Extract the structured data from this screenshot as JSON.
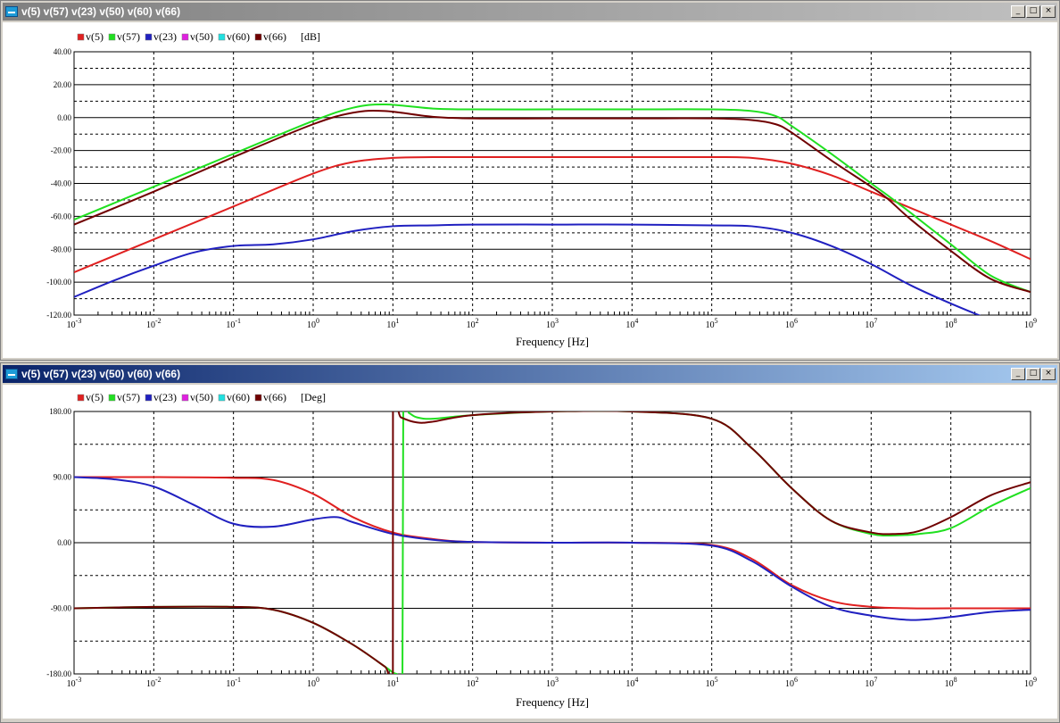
{
  "windows": [
    {
      "title": "v(5) v(57) v(23) v(50) v(60) v(66)",
      "active": false,
      "controls": {
        "minimize": "_",
        "maximize": "□",
        "close": "×"
      }
    },
    {
      "title": "v(5) v(57) v(23) v(50) v(60) v(66)",
      "active": true,
      "controls": {
        "minimize": "_",
        "maximize": "□",
        "close": "×"
      }
    }
  ],
  "chart_data": [
    {
      "type": "line",
      "xscale": "log",
      "xlim": [
        0.001,
        1000000000
      ],
      "ylim": [
        -120,
        40
      ],
      "yticks": [
        40,
        20,
        0,
        -20,
        -40,
        -60,
        -80,
        -100,
        -120
      ],
      "ytick_labels": [
        "40.00",
        "20.00",
        "0.00",
        "-20.00",
        "-40.00",
        "-60.00",
        "-80.00",
        "-100.00",
        "-120.00"
      ],
      "xtick_labels": [
        {
          "base": "10",
          "exp": "-3"
        },
        {
          "base": "10",
          "exp": "-2"
        },
        {
          "base": "10",
          "exp": "-1"
        },
        {
          "base": "10",
          "exp": "0"
        },
        {
          "base": "10",
          "exp": "1"
        },
        {
          "base": "10",
          "exp": "2"
        },
        {
          "base": "10",
          "exp": "3"
        },
        {
          "base": "10",
          "exp": "4"
        },
        {
          "base": "10",
          "exp": "5"
        },
        {
          "base": "10",
          "exp": "6"
        },
        {
          "base": "10",
          "exp": "7"
        },
        {
          "base": "10",
          "exp": "8"
        },
        {
          "base": "10",
          "exp": "9"
        }
      ],
      "xlabel": "Frequency [Hz]",
      "unit_label": "[dB]",
      "grid": true,
      "legend_position": "top-left",
      "series": [
        {
          "name": "v(5)",
          "color": "#e02020",
          "x": [
            -3,
            -2,
            -1,
            0,
            0.5,
            1,
            1.5,
            2,
            3,
            4,
            5,
            5.5,
            6,
            6.5,
            7,
            7.5,
            8,
            8.5,
            9
          ],
          "y": [
            -94,
            -74,
            -54,
            -34,
            -27,
            -24.5,
            -24,
            -24,
            -24,
            -24,
            -24,
            -24.5,
            -28,
            -35,
            -45,
            -55,
            -65,
            -75,
            -86
          ]
        },
        {
          "name": "v(57)",
          "color": "#20e020",
          "x": [
            -3,
            -2,
            -1,
            0,
            0.5,
            0.9,
            1.5,
            2,
            3,
            4,
            5,
            5.5,
            5.8,
            6,
            6.5,
            7,
            7.2,
            7.5,
            8,
            8.5,
            9
          ],
          "y": [
            -62,
            -42,
            -22,
            -2,
            6,
            8,
            5.5,
            5,
            5,
            5,
            5,
            4,
            1,
            -5,
            -22,
            -40,
            -47,
            -58,
            -77,
            -96,
            -106
          ]
        },
        {
          "name": "v(23)",
          "color": "#2020c0",
          "x": [
            -3,
            -2.5,
            -2,
            -1.5,
            -1,
            -0.5,
            0,
            0.5,
            1,
            1.5,
            2,
            3,
            4,
            5,
            5.5,
            6,
            6.5,
            7,
            7.5,
            8,
            8.5
          ],
          "y": [
            -109,
            -99,
            -90,
            -82,
            -78,
            -77,
            -74,
            -69,
            -66,
            -65.5,
            -65,
            -65,
            -65,
            -65.5,
            -66,
            -70,
            -78,
            -89,
            -102,
            -113,
            -123
          ]
        },
        {
          "name": "v(50)",
          "color": "#e020e0",
          "x": [],
          "y": []
        },
        {
          "name": "v(60)",
          "color": "#20e0e0",
          "x": [],
          "y": []
        },
        {
          "name": "v(66)",
          "color": "#700000",
          "x": [
            -3,
            -2,
            -1,
            0,
            0.5,
            0.9,
            1.5,
            2,
            3,
            4,
            5,
            5.5,
            5.8,
            6,
            6.5,
            7,
            7.2,
            7.5,
            8,
            8.5,
            9
          ],
          "y": [
            -65,
            -45,
            -24,
            -4,
            3,
            4,
            0.5,
            -0.5,
            -0.5,
            -0.5,
            -0.5,
            -1.5,
            -4,
            -9,
            -26,
            -42,
            -49,
            -62,
            -81,
            -98,
            -106
          ]
        }
      ]
    },
    {
      "type": "line",
      "xscale": "log",
      "xlim": [
        0.001,
        1000000000
      ],
      "ylim": [
        -180,
        180
      ],
      "yticks": [
        180,
        90,
        0,
        -90,
        -180
      ],
      "ytick_labels": [
        "180.00",
        "90.00",
        "0.00",
        "-90.00",
        "-180.00"
      ],
      "xtick_labels": [
        {
          "base": "10",
          "exp": "-3"
        },
        {
          "base": "10",
          "exp": "-2"
        },
        {
          "base": "10",
          "exp": "-1"
        },
        {
          "base": "10",
          "exp": "0"
        },
        {
          "base": "10",
          "exp": "1"
        },
        {
          "base": "10",
          "exp": "2"
        },
        {
          "base": "10",
          "exp": "3"
        },
        {
          "base": "10",
          "exp": "4"
        },
        {
          "base": "10",
          "exp": "5"
        },
        {
          "base": "10",
          "exp": "6"
        },
        {
          "base": "10",
          "exp": "7"
        },
        {
          "base": "10",
          "exp": "8"
        },
        {
          "base": "10",
          "exp": "9"
        }
      ],
      "xlabel": "Frequency [Hz]",
      "unit_label": "[Deg]",
      "grid": true,
      "legend_position": "top-left",
      "series": [
        {
          "name": "v(5)",
          "color": "#e02020",
          "x": [
            -3,
            -2,
            -1,
            -0.5,
            0,
            0.5,
            1,
            1.5,
            2,
            3,
            4,
            5,
            5.5,
            6,
            6.5,
            7,
            7.5,
            8,
            9
          ],
          "y": [
            90,
            90,
            89,
            86,
            67,
            35,
            14,
            5,
            1,
            0,
            0,
            -3,
            -22,
            -58,
            -80,
            -88,
            -90,
            -90,
            -90
          ]
        },
        {
          "name": "v(57)",
          "color": "#20e020",
          "x": [
            -3,
            -2,
            -1,
            -0.5,
            0,
            0.5,
            0.9,
            1.0,
            1.05,
            1.12,
            1.13,
            1.2,
            1.3,
            1.5,
            2,
            3,
            4,
            5,
            5.5,
            6,
            6.5,
            7,
            7.3,
            7.6,
            8,
            8.5,
            9
          ],
          "y": [
            -90,
            -88,
            -88,
            -92,
            -110,
            -140,
            -170,
            -178,
            -180,
            -180,
            180,
            178,
            172,
            170,
            175,
            180,
            180,
            170,
            130,
            75,
            30,
            12,
            10,
            12,
            20,
            50,
            75
          ]
        },
        {
          "name": "v(23)",
          "color": "#2020c0",
          "x": [
            -3,
            -2.5,
            -2,
            -1.5,
            -1,
            -0.5,
            0,
            0.3,
            0.5,
            1,
            1.5,
            2,
            3,
            4,
            5,
            5.5,
            6,
            6.5,
            7,
            7.5,
            8,
            8.5,
            9
          ],
          "y": [
            90,
            87,
            77,
            52,
            26,
            22,
            32,
            35,
            28,
            12,
            4,
            1,
            0,
            0,
            -4,
            -25,
            -60,
            -88,
            -100,
            -106,
            -102,
            -95,
            -92
          ]
        },
        {
          "name": "v(50)",
          "color": "#e020e0",
          "x": [],
          "y": []
        },
        {
          "name": "v(60)",
          "color": "#20e0e0",
          "x": [],
          "y": []
        },
        {
          "name": "v(66)",
          "color": "#700000",
          "x": [
            -3,
            -2,
            -1,
            -0.5,
            0,
            0.5,
            0.9,
            1.0,
            1.001,
            1.1,
            1.3,
            1.5,
            2,
            3,
            4,
            5,
            5.5,
            6,
            6.5,
            7,
            7.3,
            7.6,
            8,
            8.5,
            9
          ],
          "y": [
            -90,
            -88,
            -88,
            -92,
            -110,
            -140,
            -170,
            -178,
            180,
            172,
            165,
            166,
            175,
            180,
            180,
            170,
            130,
            75,
            30,
            14,
            12,
            16,
            35,
            65,
            83
          ]
        }
      ]
    }
  ]
}
